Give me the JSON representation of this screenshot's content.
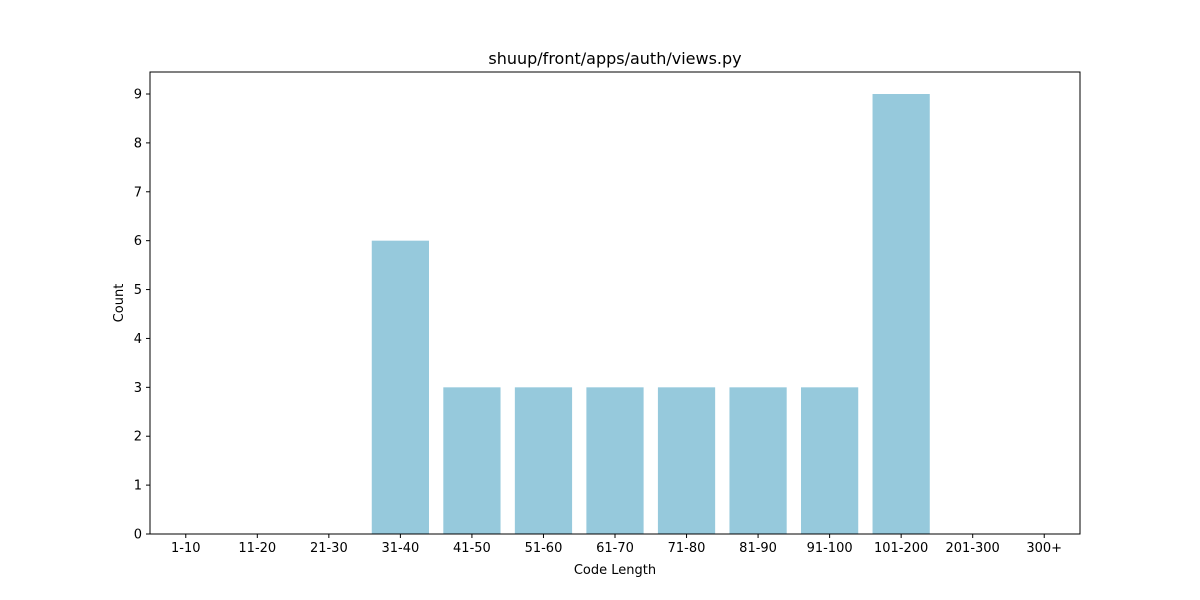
{
  "chart_data": {
    "type": "bar",
    "title": "shuup/front/apps/auth/views.py",
    "xlabel": "Code Length",
    "ylabel": "Count",
    "categories": [
      "1-10",
      "11-20",
      "21-30",
      "31-40",
      "41-50",
      "51-60",
      "61-70",
      "71-80",
      "81-90",
      "91-100",
      "101-200",
      "201-300",
      "300+"
    ],
    "values": [
      0,
      0,
      0,
      6,
      3,
      3,
      3,
      3,
      3,
      3,
      9,
      0,
      0
    ],
    "ylim": [
      0,
      9.45
    ],
    "yticks": [
      "0",
      "1",
      "2",
      "3",
      "4",
      "5",
      "6",
      "7",
      "8",
      "9"
    ],
    "grid": false,
    "bar_color": "#96c9dc"
  }
}
